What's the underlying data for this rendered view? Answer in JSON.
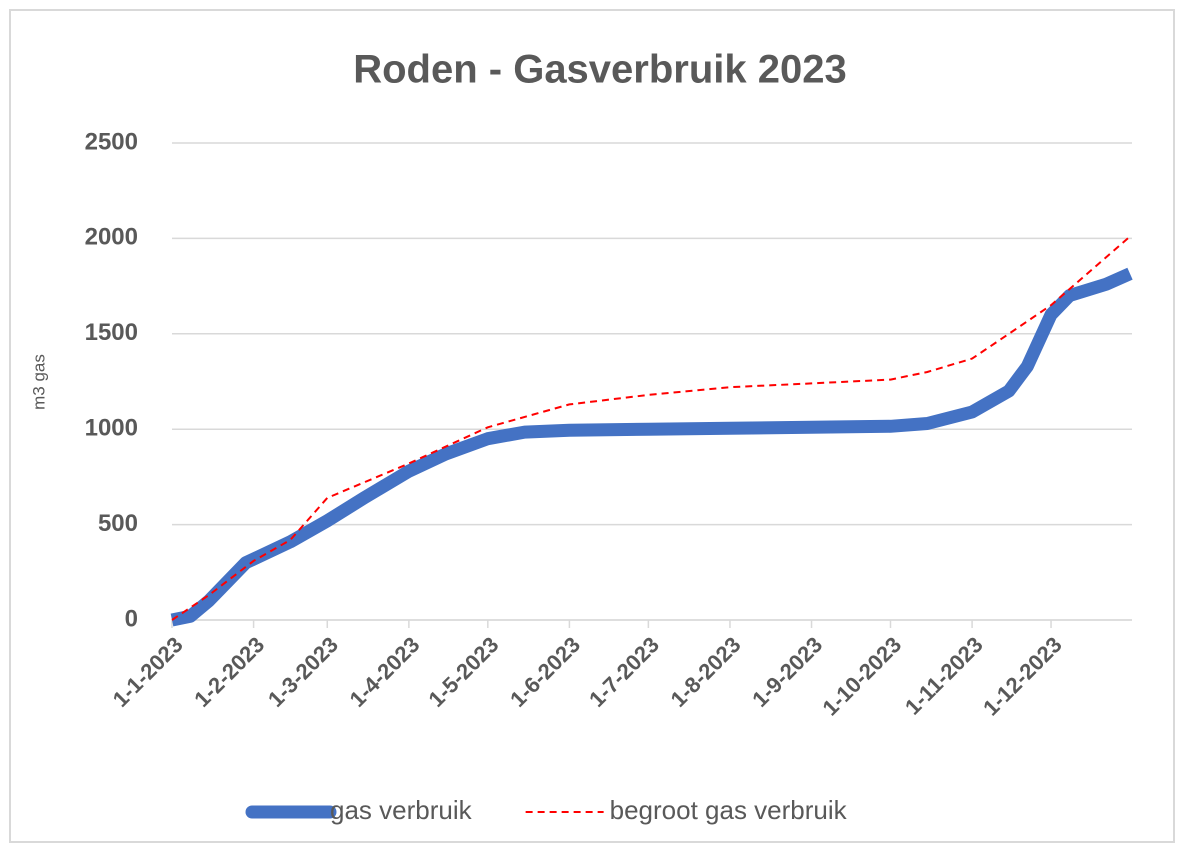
{
  "chart_data": {
    "type": "line",
    "title": "Roden - Gasverbruik 2023",
    "y_label": "m3 gas",
    "xlim": [
      "1-1-2023",
      "31-12-2023"
    ],
    "xticks": [
      "1-1-2023",
      "1-2-2023",
      "1-3-2023",
      "1-4-2023",
      "1-5-2023",
      "1-6-2023",
      "1-7-2023",
      "1-8-2023",
      "1-9-2023",
      "1-10-2023",
      "1-11-2023",
      "1-12-2023"
    ],
    "ylim": [
      0,
      2500
    ],
    "yticks": [
      0,
      500,
      1000,
      1500,
      2000,
      2500
    ],
    "grid": true,
    "legend": "bottom",
    "series": [
      {
        "name": "gas verbruik",
        "color": "#4472c4",
        "style": "solid",
        "x": [
          "1-1-2023",
          "8-1-2023",
          "15-1-2023",
          "22-1-2023",
          "29-1-2023",
          "15-2-2023",
          "1-3-2023",
          "15-3-2023",
          "1-4-2023",
          "15-4-2023",
          "1-5-2023",
          "15-5-2023",
          "1-6-2023",
          "1-7-2023",
          "1-8-2023",
          "1-9-2023",
          "1-10-2023",
          "15-10-2023",
          "1-11-2023",
          "15-11-2023",
          "22-11-2023",
          "1-12-2023",
          "8-12-2023",
          "22-12-2023",
          "31-12-2023"
        ],
        "values": [
          0,
          20,
          100,
          200,
          300,
          410,
          520,
          640,
          780,
          870,
          950,
          985,
          995,
          1000,
          1005,
          1010,
          1015,
          1030,
          1090,
          1200,
          1330,
          1600,
          1700,
          1760,
          1815
        ]
      },
      {
        "name": "begroot gas verbruik",
        "color": "#ff0000",
        "style": "dashed",
        "x": [
          "1-1-2023",
          "15-1-2023",
          "1-2-2023",
          "15-2-2023",
          "1-3-2023",
          "1-4-2023",
          "1-5-2023",
          "1-6-2023",
          "1-7-2023",
          "1-8-2023",
          "1-9-2023",
          "1-10-2023",
          "15-10-2023",
          "1-11-2023",
          "15-11-2023",
          "1-12-2023",
          "31-12-2023"
        ],
        "values": [
          0,
          130,
          310,
          420,
          640,
          820,
          1010,
          1130,
          1180,
          1220,
          1240,
          1260,
          1300,
          1370,
          1500,
          1650,
          2010
        ]
      }
    ]
  }
}
